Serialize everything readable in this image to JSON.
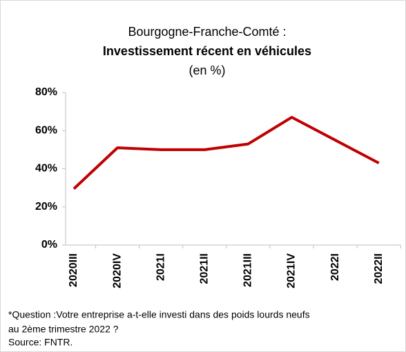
{
  "chart_data": {
    "type": "line",
    "title": "Bourgogne-Franche-Comté :",
    "subtitle": "Investissement récent en véhicules",
    "unit_label": "(en %)",
    "categories": [
      "2020III",
      "2020IV",
      "2021I",
      "2021II",
      "2021III",
      "2021IV",
      "2022I",
      "2022II"
    ],
    "series": [
      {
        "name": "Investissement récent en véhicules",
        "color": "#c00000",
        "values": [
          29.5,
          51,
          50,
          50,
          53,
          67,
          55,
          43
        ]
      }
    ],
    "ylim": [
      0,
      80
    ],
    "yticks": [
      {
        "value": 0,
        "label": "0%"
      },
      {
        "value": 20,
        "label": "20%"
      },
      {
        "value": 40,
        "label": "40%"
      },
      {
        "value": 60,
        "label": "60%"
      },
      {
        "value": 80,
        "label": "80%"
      }
    ],
    "grid": false,
    "notes": [
      "*Question :Votre entreprise a-t-elle investi dans des poids lourds neufs",
      "au 2ème trimestre 2022 ?",
      "Source: FNTR."
    ]
  }
}
